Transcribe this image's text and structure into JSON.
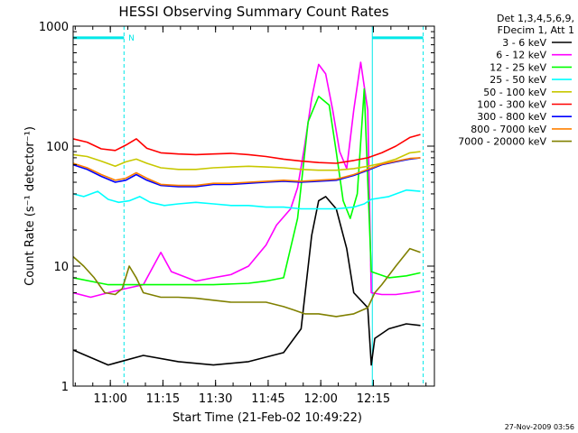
{
  "chart_data": {
    "type": "line",
    "title": "HESSI Observing Summary Count Rates",
    "xlabel": "Start Time (21-Feb-02 10:49:22)",
    "ylabel": "Count Rate (s⁻¹ detector⁻¹)",
    "x_unit": "minutes after 10:49:22",
    "xlim": [
      0,
      103
    ],
    "ylim": [
      1,
      1000
    ],
    "y_scale": "log",
    "x_ticks": [
      {
        "label": "11:00",
        "x": 10.6
      },
      {
        "label": "11:15",
        "x": 25.6
      },
      {
        "label": "11:30",
        "x": 40.6
      },
      {
        "label": "11:45",
        "x": 55.6
      },
      {
        "label": "12:00",
        "x": 70.6
      },
      {
        "label": "12:15",
        "x": 85.6
      }
    ],
    "y_ticks": [
      {
        "label": "1",
        "y": 1
      },
      {
        "label": "10",
        "y": 10
      },
      {
        "label": "100",
        "y": 100
      },
      {
        "label": "1000",
        "y": 1000
      }
    ],
    "legend_header": [
      "Det 1,3,4,5,6,9,",
      "FDecim 1, Att 1"
    ],
    "legend_position": "right",
    "annotation": {
      "text": "N",
      "x": 16.5,
      "y": 800
    },
    "night_markers": {
      "color": "#00e8e8",
      "x": [
        0,
        14.5,
        85.3,
        99.8
      ],
      "bar_y": 800
    },
    "series": [
      {
        "name": "3 - 6 keV",
        "color": "#000000",
        "points": [
          [
            0,
            2
          ],
          [
            10,
            1.5
          ],
          [
            20,
            1.8
          ],
          [
            30,
            1.6
          ],
          [
            40,
            1.5
          ],
          [
            50,
            1.6
          ],
          [
            60,
            1.9
          ],
          [
            65,
            3
          ],
          [
            68,
            18
          ],
          [
            70,
            35
          ],
          [
            72,
            38
          ],
          [
            75,
            30
          ],
          [
            78,
            14
          ],
          [
            80,
            6
          ],
          [
            84,
            4.5
          ],
          [
            85,
            1.5
          ],
          [
            86,
            2.5
          ],
          [
            90,
            3
          ],
          [
            95,
            3.3
          ],
          [
            99,
            3.2
          ]
        ]
      },
      {
        "name": "6 - 12 keV",
        "color": "#ff00ff",
        "points": [
          [
            0,
            6
          ],
          [
            5,
            5.5
          ],
          [
            10,
            6
          ],
          [
            15,
            6.5
          ],
          [
            20,
            7
          ],
          [
            25,
            13
          ],
          [
            28,
            9
          ],
          [
            35,
            7.5
          ],
          [
            40,
            8
          ],
          [
            45,
            8.5
          ],
          [
            50,
            10
          ],
          [
            55,
            15
          ],
          [
            58,
            22
          ],
          [
            62,
            30
          ],
          [
            64,
            45
          ],
          [
            66,
            100
          ],
          [
            68,
            250
          ],
          [
            70,
            480
          ],
          [
            72,
            400
          ],
          [
            74,
            200
          ],
          [
            76,
            90
          ],
          [
            78,
            65
          ],
          [
            80,
            200
          ],
          [
            82,
            500
          ],
          [
            84,
            200
          ],
          [
            85,
            6
          ],
          [
            88,
            5.8
          ],
          [
            92,
            5.8
          ],
          [
            96,
            6
          ],
          [
            99,
            6.2
          ]
        ]
      },
      {
        "name": "12 - 25 keV",
        "color": "#00ff00",
        "points": [
          [
            0,
            8
          ],
          [
            10,
            7
          ],
          [
            20,
            7
          ],
          [
            30,
            7
          ],
          [
            40,
            7
          ],
          [
            50,
            7.2
          ],
          [
            55,
            7.5
          ],
          [
            60,
            8
          ],
          [
            64,
            25
          ],
          [
            67,
            160
          ],
          [
            70,
            260
          ],
          [
            73,
            220
          ],
          [
            75,
            90
          ],
          [
            77,
            35
          ],
          [
            79,
            25
          ],
          [
            81,
            40
          ],
          [
            83,
            300
          ],
          [
            85,
            9
          ],
          [
            90,
            8
          ],
          [
            95,
            8.3
          ],
          [
            99,
            8.8
          ]
        ]
      },
      {
        "name": "25 - 50 keV",
        "color": "#00ffff",
        "points": [
          [
            0,
            40
          ],
          [
            3,
            38
          ],
          [
            7,
            42
          ],
          [
            10,
            36
          ],
          [
            13,
            34
          ],
          [
            16,
            35
          ],
          [
            19,
            38
          ],
          [
            22,
            34
          ],
          [
            26,
            32
          ],
          [
            30,
            33
          ],
          [
            35,
            34
          ],
          [
            40,
            33
          ],
          [
            45,
            32
          ],
          [
            50,
            32
          ],
          [
            55,
            31
          ],
          [
            60,
            31
          ],
          [
            65,
            30
          ],
          [
            70,
            30
          ],
          [
            75,
            30
          ],
          [
            80,
            31
          ],
          [
            83,
            33
          ],
          [
            85,
            36
          ],
          [
            90,
            38
          ],
          [
            95,
            43
          ],
          [
            99,
            42
          ]
        ]
      },
      {
        "name": "50 - 100 keV",
        "color": "#c8c800",
        "points": [
          [
            0,
            85
          ],
          [
            4,
            82
          ],
          [
            8,
            75
          ],
          [
            12,
            68
          ],
          [
            15,
            74
          ],
          [
            18,
            78
          ],
          [
            21,
            72
          ],
          [
            25,
            66
          ],
          [
            30,
            64
          ],
          [
            35,
            64
          ],
          [
            40,
            66
          ],
          [
            45,
            67
          ],
          [
            50,
            68
          ],
          [
            55,
            67
          ],
          [
            60,
            66
          ],
          [
            65,
            64
          ],
          [
            70,
            63
          ],
          [
            75,
            63
          ],
          [
            80,
            65
          ],
          [
            84,
            68
          ],
          [
            88,
            72
          ],
          [
            92,
            78
          ],
          [
            96,
            88
          ],
          [
            99,
            90
          ]
        ]
      },
      {
        "name": "100 - 300 keV",
        "color": "#ff0000",
        "points": [
          [
            0,
            115
          ],
          [
            4,
            108
          ],
          [
            8,
            95
          ],
          [
            12,
            92
          ],
          [
            15,
            102
          ],
          [
            18,
            115
          ],
          [
            21,
            96
          ],
          [
            25,
            88
          ],
          [
            30,
            86
          ],
          [
            35,
            85
          ],
          [
            40,
            86
          ],
          [
            45,
            87
          ],
          [
            50,
            85
          ],
          [
            55,
            82
          ],
          [
            60,
            78
          ],
          [
            65,
            75
          ],
          [
            70,
            73
          ],
          [
            75,
            72
          ],
          [
            80,
            76
          ],
          [
            84,
            80
          ],
          [
            88,
            88
          ],
          [
            92,
            100
          ],
          [
            96,
            118
          ],
          [
            99,
            125
          ]
        ]
      },
      {
        "name": "300 - 800 keV",
        "color": "#0000ff",
        "points": [
          [
            0,
            70
          ],
          [
            4,
            64
          ],
          [
            8,
            56
          ],
          [
            12,
            50
          ],
          [
            15,
            52
          ],
          [
            18,
            58
          ],
          [
            21,
            52
          ],
          [
            25,
            47
          ],
          [
            30,
            46
          ],
          [
            35,
            46
          ],
          [
            40,
            48
          ],
          [
            45,
            48
          ],
          [
            50,
            49
          ],
          [
            55,
            50
          ],
          [
            60,
            51
          ],
          [
            65,
            50
          ],
          [
            70,
            51
          ],
          [
            75,
            52
          ],
          [
            80,
            57
          ],
          [
            84,
            63
          ],
          [
            88,
            70
          ],
          [
            92,
            74
          ],
          [
            96,
            78
          ],
          [
            99,
            80
          ]
        ]
      },
      {
        "name": "800 - 7000 keV",
        "color": "#ff8000",
        "points": [
          [
            0,
            72
          ],
          [
            4,
            66
          ],
          [
            8,
            58
          ],
          [
            12,
            52
          ],
          [
            15,
            54
          ],
          [
            18,
            60
          ],
          [
            21,
            54
          ],
          [
            25,
            48
          ],
          [
            30,
            47
          ],
          [
            35,
            47
          ],
          [
            40,
            49
          ],
          [
            45,
            49
          ],
          [
            50,
            50
          ],
          [
            55,
            51
          ],
          [
            60,
            52
          ],
          [
            65,
            51
          ],
          [
            70,
            52
          ],
          [
            75,
            53
          ],
          [
            80,
            58
          ],
          [
            84,
            64
          ],
          [
            88,
            71
          ],
          [
            92,
            75
          ],
          [
            96,
            79
          ],
          [
            99,
            80
          ]
        ]
      },
      {
        "name": "7000 - 20000 keV",
        "color": "#808000",
        "points": [
          [
            0,
            12
          ],
          [
            3,
            10
          ],
          [
            6,
            8
          ],
          [
            9,
            6
          ],
          [
            12,
            5.8
          ],
          [
            14,
            6.5
          ],
          [
            16,
            10
          ],
          [
            18,
            8
          ],
          [
            20,
            6
          ],
          [
            25,
            5.5
          ],
          [
            30,
            5.5
          ],
          [
            35,
            5.4
          ],
          [
            40,
            5.2
          ],
          [
            45,
            5
          ],
          [
            50,
            5
          ],
          [
            55,
            5
          ],
          [
            60,
            4.6
          ],
          [
            63,
            4.3
          ],
          [
            66,
            4
          ],
          [
            70,
            4
          ],
          [
            75,
            3.8
          ],
          [
            80,
            4
          ],
          [
            84,
            4.5
          ],
          [
            86,
            6
          ],
          [
            88,
            7
          ],
          [
            92,
            10
          ],
          [
            96,
            14
          ],
          [
            99,
            13
          ]
        ]
      }
    ]
  },
  "footer": {
    "timestamp": "27-Nov-2009 03:56"
  }
}
